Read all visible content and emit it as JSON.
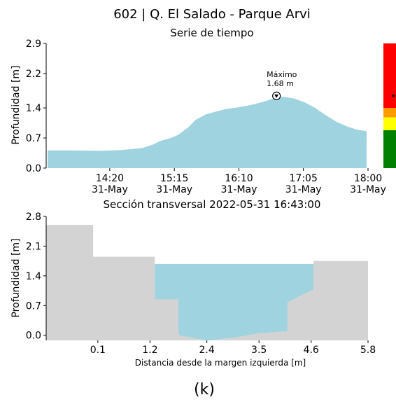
{
  "figure_title": "602 | Q. El Salado - Parque Arvi",
  "figure_label": "(k)",
  "colors": {
    "water": "#9fd3e0",
    "terrain": "#d3d3d3",
    "level_red": "#ff0000",
    "level_orange": "#ff9900",
    "level_yellow": "#ffff00",
    "level_green": "#008000"
  },
  "chart_data": [
    {
      "type": "area",
      "title": "Serie de tiempo",
      "xlabel": "",
      "ylabel": "Profundidad [m]",
      "y_ticks": [
        "0.0",
        "0.7",
        "1.4",
        "2.2",
        "2.9"
      ],
      "y_tick_values": [
        0.0,
        0.7,
        1.4,
        2.2,
        2.9
      ],
      "ylim": [
        0,
        2.9
      ],
      "x_ticks": [
        {
          "t": 14.333,
          "time": "14:20",
          "date": "31-May"
        },
        {
          "t": 15.25,
          "time": "15:15",
          "date": "31-May"
        },
        {
          "t": 16.167,
          "time": "16:10",
          "date": "31-May"
        },
        {
          "t": 17.083,
          "time": "17:05",
          "date": "31-May"
        },
        {
          "t": 18.0,
          "time": "18:00",
          "date": "31-May"
        }
      ],
      "x_units": "hour of day, 31-May",
      "xlim": [
        13.43,
        18.0
      ],
      "series": [
        {
          "x": [
            13.45,
            13.8,
            14.2,
            14.5,
            14.8,
            14.95,
            15.05,
            15.2,
            15.3,
            15.45,
            15.55,
            15.7,
            15.85,
            16.0,
            16.1,
            16.25,
            16.4,
            16.55,
            16.65,
            16.72,
            16.8,
            16.95,
            17.1,
            17.25,
            17.4,
            17.55,
            17.7,
            17.85,
            17.98
          ],
          "y": [
            0.41,
            0.41,
            0.4,
            0.42,
            0.47,
            0.55,
            0.63,
            0.7,
            0.77,
            0.95,
            1.12,
            1.25,
            1.32,
            1.38,
            1.4,
            1.44,
            1.49,
            1.56,
            1.62,
            1.65,
            1.66,
            1.62,
            1.53,
            1.4,
            1.23,
            1.08,
            0.97,
            0.89,
            0.86
          ]
        }
      ],
      "annotation": {
        "label": "Máximo",
        "value_text": "1.68 m",
        "x": 16.7,
        "y": 1.68
      },
      "level_scale": {
        "max": 2.9,
        "bands": [
          {
            "color": "green",
            "from": 0.0,
            "to": 0.88
          },
          {
            "color": "yellow",
            "from": 0.88,
            "to": 1.18
          },
          {
            "color": "orange",
            "from": 1.18,
            "to": 1.4
          },
          {
            "color": "red",
            "from": 1.4,
            "to": 2.9
          }
        ],
        "current": 1.68
      }
    },
    {
      "type": "area",
      "title": "Sección transversal 2022-05-31 16:43:00",
      "xlabel": "Distancia desde la margen izquierda [m]",
      "ylabel": "Profundidad [m]",
      "x_ticks": [
        "0.1",
        "1.2",
        "2.4",
        "3.5",
        "4.6",
        "5.8"
      ],
      "x_tick_values": [
        0.1,
        1.2,
        2.4,
        3.5,
        4.6,
        5.8
      ],
      "y_ticks": [
        "0.0",
        "0.7",
        "1.4",
        "2.1",
        "2.8"
      ],
      "y_tick_values": [
        0.0,
        0.7,
        1.4,
        2.1,
        2.8
      ],
      "xlim": [
        -0.99,
        5.8
      ],
      "ylim": [
        -0.12,
        2.8
      ],
      "terrain": {
        "x": [
          -0.99,
          0.0,
          0.0,
          1.3,
          1.3,
          1.8,
          1.8,
          1.82,
          2.4,
          3.0,
          3.5,
          4.1,
          4.1,
          4.6,
          4.65,
          4.65,
          5.8,
          5.8,
          -0.99
        ],
        "y": [
          2.6,
          2.6,
          1.85,
          1.85,
          0.85,
          0.85,
          0.1,
          0.0,
          -0.12,
          -0.05,
          0.05,
          0.1,
          0.78,
          1.06,
          1.06,
          1.75,
          1.75,
          -0.12,
          -0.12
        ]
      },
      "water_surface": 1.68
    }
  ]
}
